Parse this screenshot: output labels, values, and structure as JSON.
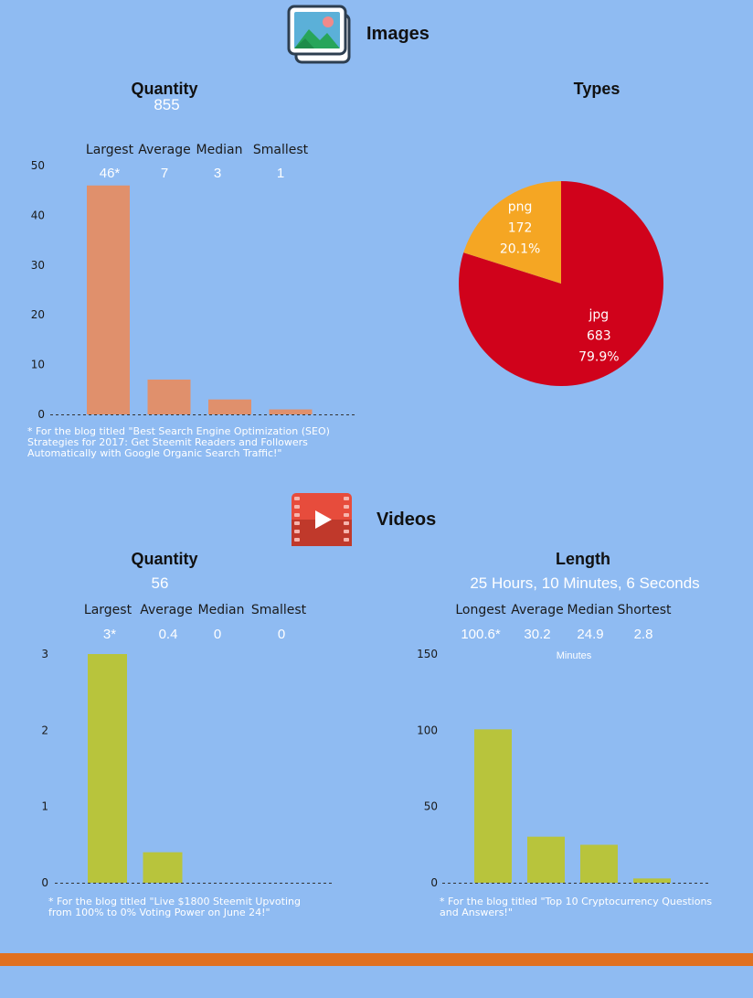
{
  "sections": {
    "images": {
      "title": "Images",
      "quantity": {
        "title": "Quantity",
        "total": "855",
        "stats": [
          {
            "label": "Largest",
            "value": "46*"
          },
          {
            "label": "Average",
            "value": "7"
          },
          {
            "label": "Median",
            "value": "3"
          },
          {
            "label": "Smallest",
            "value": "1"
          }
        ],
        "footnote": "* For the blog titled \"Best Search Engine Optimization (SEO) Strategies for 2017: Get Steemit Readers and Followers Automatically with Google Organic Search Traffic!\""
      },
      "types": {
        "title": "Types"
      }
    },
    "videos": {
      "title": "Videos",
      "quantity": {
        "title": "Quantity",
        "total": "56",
        "stats": [
          {
            "label": "Largest",
            "value": "3*"
          },
          {
            "label": "Average",
            "value": "0.4"
          },
          {
            "label": "Median",
            "value": "0"
          },
          {
            "label": "Smallest",
            "value": "0"
          }
        ],
        "footnote": "* For the blog titled \"Live $1800 Steemit Upvoting from 100% to 0% Voting Power on June 24!\""
      },
      "length": {
        "title": "Length",
        "total": "25 Hours, 10 Minutes, 6 Seconds",
        "stats": [
          {
            "label": "Longest",
            "value": "100.6*"
          },
          {
            "label": "Average",
            "value": "30.2"
          },
          {
            "label": "Median",
            "value": "24.9"
          },
          {
            "label": "Shortest",
            "value": "2.8"
          }
        ],
        "units": "Minutes",
        "footnote": "* For the blog titled \"Top 10 Cryptocurrency Questions and Answers!\""
      }
    }
  },
  "colors": {
    "background": "#8fbbf2",
    "image_bars": "#e0906c",
    "video_bars": "#b8c43c",
    "pie_jpg": "#d0021b",
    "pie_png": "#f5a623",
    "divider": "#e07020"
  },
  "icons": {
    "images": "picture-stack-icon",
    "videos": "film-play-icon"
  },
  "chart_data": [
    {
      "id": "images-quantity",
      "type": "bar",
      "categories": [
        "Largest",
        "Average",
        "Median",
        "Smallest"
      ],
      "values": [
        46,
        7,
        3,
        1
      ],
      "yticks": [
        0,
        10,
        20,
        30,
        40,
        50
      ],
      "ylim": [
        0,
        50
      ],
      "grid": false
    },
    {
      "id": "images-types",
      "type": "pie",
      "slices": [
        {
          "label": "jpg",
          "value": 683,
          "percent": "79.9%"
        },
        {
          "label": "png",
          "value": 172,
          "percent": "20.1%"
        }
      ]
    },
    {
      "id": "videos-quantity",
      "type": "bar",
      "categories": [
        "Largest",
        "Average",
        "Median",
        "Smallest"
      ],
      "values": [
        3,
        0.4,
        0,
        0
      ],
      "yticks": [
        0,
        1,
        2,
        3
      ],
      "ylim": [
        0,
        3
      ],
      "grid": false
    },
    {
      "id": "videos-length",
      "type": "bar",
      "categories": [
        "Longest",
        "Average",
        "Median",
        "Shortest"
      ],
      "values": [
        100.6,
        30.2,
        24.9,
        2.8
      ],
      "yticks": [
        0,
        50,
        100,
        150
      ],
      "ylim": [
        0,
        150
      ],
      "grid": false
    }
  ]
}
